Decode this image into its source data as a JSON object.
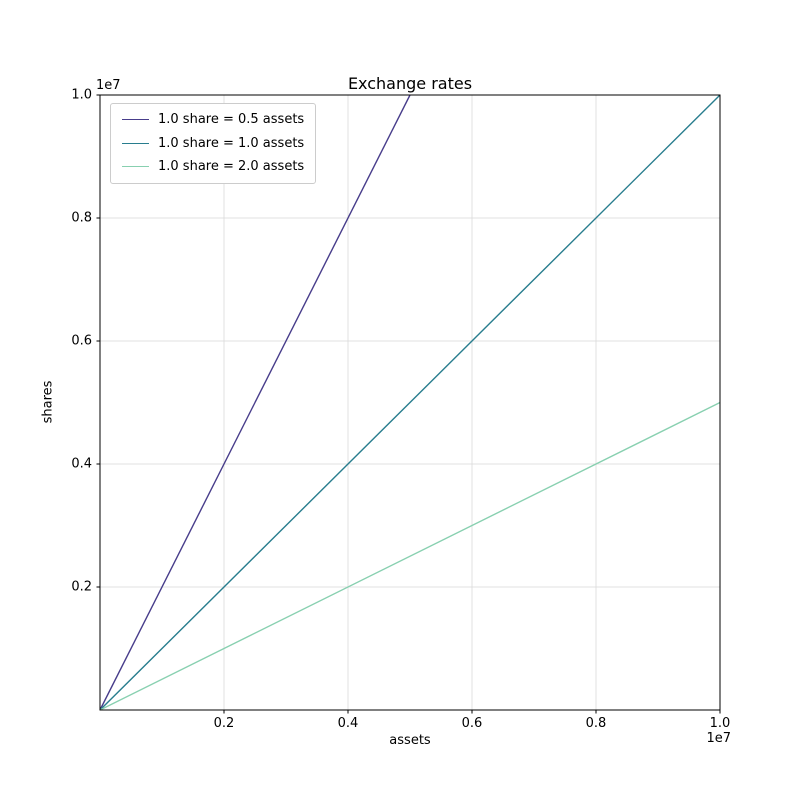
{
  "chart_data": {
    "type": "line",
    "title": "Exchange rates",
    "xlabel": "assets",
    "ylabel": "shares",
    "x_offset_text": "1e7",
    "y_offset_text": "1e7",
    "xlim": [
      0,
      10000000
    ],
    "ylim": [
      0,
      10000000
    ],
    "xticks": [
      2000000,
      4000000,
      6000000,
      8000000,
      10000000
    ],
    "xtick_labels": [
      "0.2",
      "0.4",
      "0.6",
      "0.8",
      "1.0"
    ],
    "yticks": [
      2000000,
      4000000,
      6000000,
      8000000,
      10000000
    ],
    "ytick_labels": [
      "0.2",
      "0.4",
      "0.6",
      "0.8",
      "1.0"
    ],
    "grid": true,
    "grid_color": "#d9d9d9",
    "spine_color": "#000000",
    "legend_position": "upper-left",
    "series": [
      {
        "name": "1.0 share = 0.5 assets",
        "color": "#483d8b",
        "x": [
          0,
          5000000
        ],
        "y": [
          0,
          10000000
        ]
      },
      {
        "name": "1.0 share = 1.0 assets",
        "color": "#287d8e",
        "x": [
          0,
          10000000
        ],
        "y": [
          0,
          10000000
        ]
      },
      {
        "name": "1.0 share = 2.0 assets",
        "color": "#88d0b0",
        "x": [
          0,
          10000000
        ],
        "y": [
          0,
          5000000
        ]
      }
    ]
  }
}
